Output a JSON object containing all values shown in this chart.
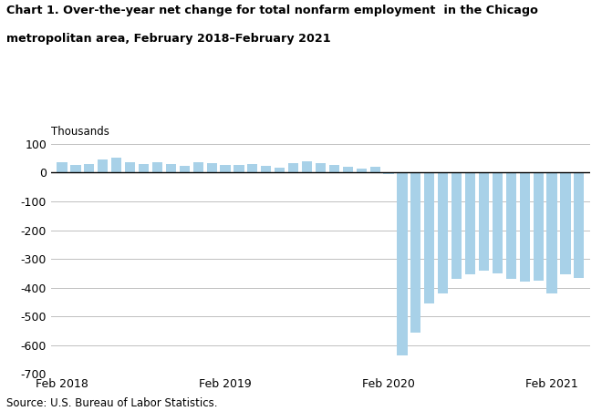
{
  "title_line1": "Chart 1. Over-the-year net change for total nonfarm employment  in the Chicago",
  "title_line2": "metropolitan area, February 2018–February 2021",
  "ylabel": "Thousands",
  "source": "Source: U.S. Bureau of Labor Statistics.",
  "bar_color": "#a8d1e8",
  "ylim": [
    -700,
    100
  ],
  "yticks": [
    100,
    0,
    -100,
    -200,
    -300,
    -400,
    -500,
    -600,
    -700
  ],
  "xtick_labels": [
    "Feb 2018",
    "Feb 2019",
    "Feb 2020",
    "Feb 2021"
  ],
  "xtick_positions": [
    0,
    12,
    24,
    36
  ],
  "values": [
    35,
    27,
    30,
    47,
    52,
    35,
    30,
    35,
    30,
    22,
    37,
    33,
    28,
    27,
    30,
    22,
    18,
    32,
    40,
    33,
    27,
    20,
    15,
    20,
    -5,
    -635,
    -555,
    -455,
    -420,
    -370,
    -355,
    -340,
    -350,
    -370,
    -380,
    -375,
    -420,
    -355,
    -365
  ],
  "n_bars": 39
}
